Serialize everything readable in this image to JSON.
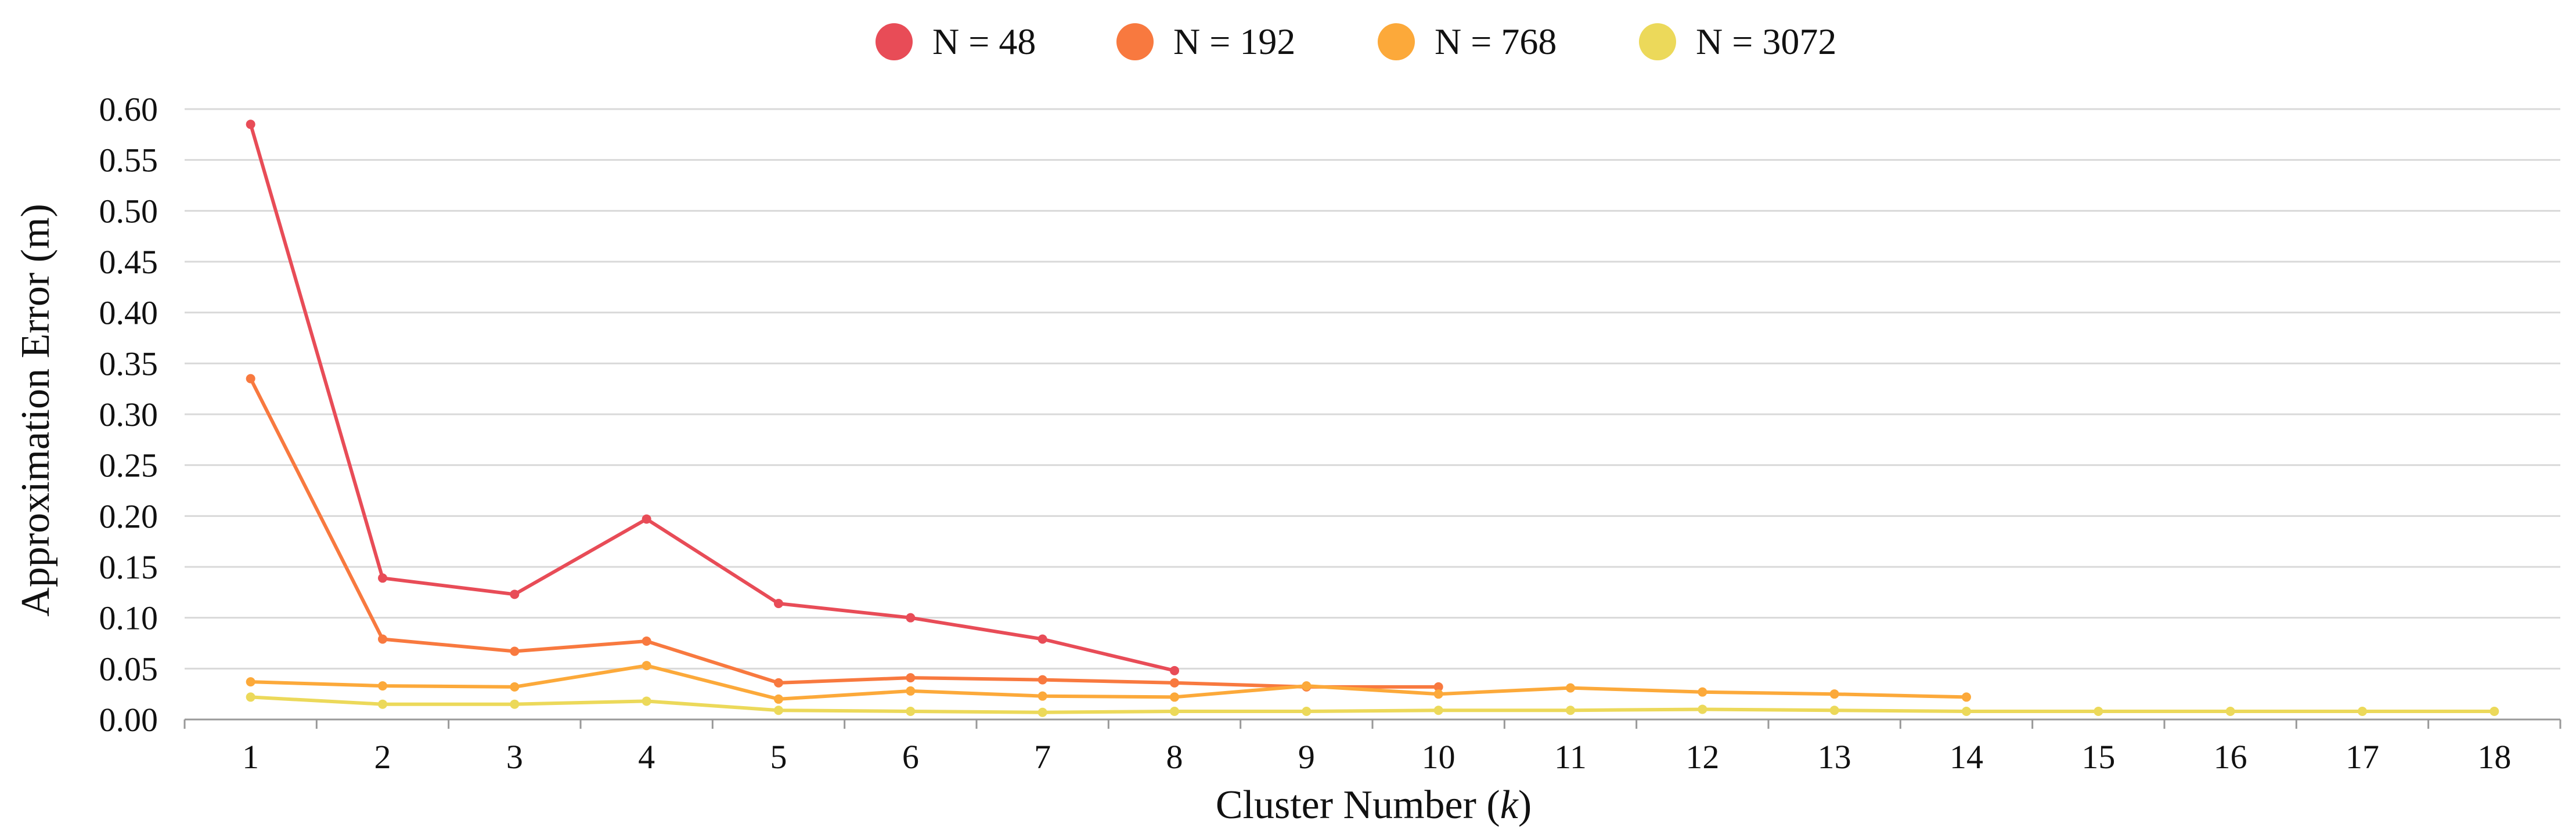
{
  "chart_data": {
    "type": "line",
    "title": "",
    "xlabel": "Cluster Number (",
    "xlabel_var": "k",
    "xlabel_end": ")",
    "ylabel": "Approximation Error (m)",
    "x": [
      1,
      2,
      3,
      4,
      5,
      6,
      7,
      8,
      9,
      10,
      11,
      12,
      13,
      14,
      15,
      16,
      17,
      18
    ],
    "x_ticks": [
      "1",
      "2",
      "3",
      "4",
      "5",
      "6",
      "7",
      "8",
      "9",
      "10",
      "11",
      "12",
      "13",
      "14",
      "15",
      "16",
      "17",
      "18"
    ],
    "xlim": [
      0.5,
      18.5
    ],
    "ylim": [
      0,
      0.6
    ],
    "y_ticks": [
      0,
      0.05,
      0.1,
      0.15,
      0.2,
      0.25,
      0.3,
      0.35,
      0.4,
      0.45,
      0.5,
      0.55,
      0.6
    ],
    "y_tick_labels": [
      "0.00",
      "0.05",
      "0.10",
      "0.15",
      "0.20",
      "0.25",
      "0.30",
      "0.35",
      "0.40",
      "0.45",
      "0.50",
      "0.55",
      "0.60"
    ],
    "grid": true,
    "legend_position": "top-center",
    "series": [
      {
        "name": "N = 48",
        "color": "#e84c57",
        "x": [
          1,
          2,
          3,
          4,
          5,
          6,
          7,
          8
        ],
        "values": [
          0.585,
          0.139,
          0.123,
          0.197,
          0.114,
          0.1,
          0.079,
          0.048
        ]
      },
      {
        "name": "N = 192",
        "color": "#f8793f",
        "x": [
          1,
          2,
          3,
          4,
          5,
          6,
          7,
          8,
          9,
          10
        ],
        "values": [
          0.335,
          0.079,
          0.067,
          0.077,
          0.036,
          0.041,
          0.039,
          0.036,
          0.032,
          0.032
        ]
      },
      {
        "name": "N = 768",
        "color": "#fca93a",
        "x": [
          1,
          2,
          3,
          4,
          5,
          6,
          7,
          8,
          9,
          10,
          11,
          12,
          13,
          14
        ],
        "values": [
          0.037,
          0.033,
          0.032,
          0.053,
          0.02,
          0.028,
          0.023,
          0.022,
          0.033,
          0.025,
          0.031,
          0.027,
          0.025,
          0.022
        ]
      },
      {
        "name": "N = 3072",
        "color": "#ecd95a",
        "x": [
          1,
          2,
          3,
          4,
          5,
          6,
          7,
          8,
          9,
          10,
          11,
          12,
          13,
          14,
          15,
          16,
          17,
          18
        ],
        "values": [
          0.022,
          0.015,
          0.015,
          0.018,
          0.009,
          0.008,
          0.007,
          0.008,
          0.008,
          0.009,
          0.009,
          0.01,
          0.009,
          0.008,
          0.008,
          0.008,
          0.008,
          0.008
        ]
      }
    ]
  }
}
